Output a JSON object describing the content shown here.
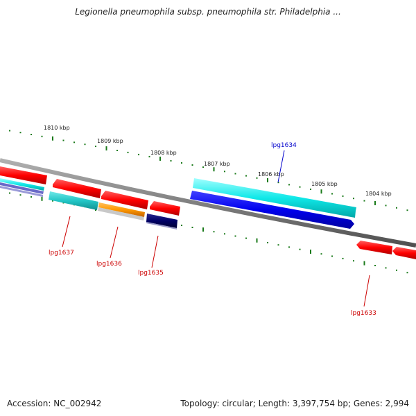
{
  "title": "Legionella pneumophila subsp. pneumophila str. Philadelphia ...",
  "footer": {
    "accession": "Accession: NC_002942",
    "topology": "Topology: circular; Length: 3,397,754 bp; Genes: 2,994"
  },
  "ruler": {
    "labels": [
      "1810 kbp",
      "1809 kbp",
      "1808 kbp",
      "1807 kbp",
      "1806 kbp",
      "1805 kbp",
      "1804 kbp"
    ],
    "tick_color": "#1a7a1a"
  },
  "genes": {
    "lpg1637": "lpg1637",
    "lpg1636": "lpg1636",
    "lpg1635": "lpg1635",
    "lpg1634": "lpg1634",
    "lpg1633": "lpg1633"
  },
  "colors": {
    "red": "#ff0000",
    "cyan": "#00dddd",
    "blue": "#0000ee",
    "navy": "#000066",
    "orange": "#ff9900",
    "teal": "#22c6c6",
    "label_red": "#cc0000",
    "label_blue": "#0000cc"
  }
}
